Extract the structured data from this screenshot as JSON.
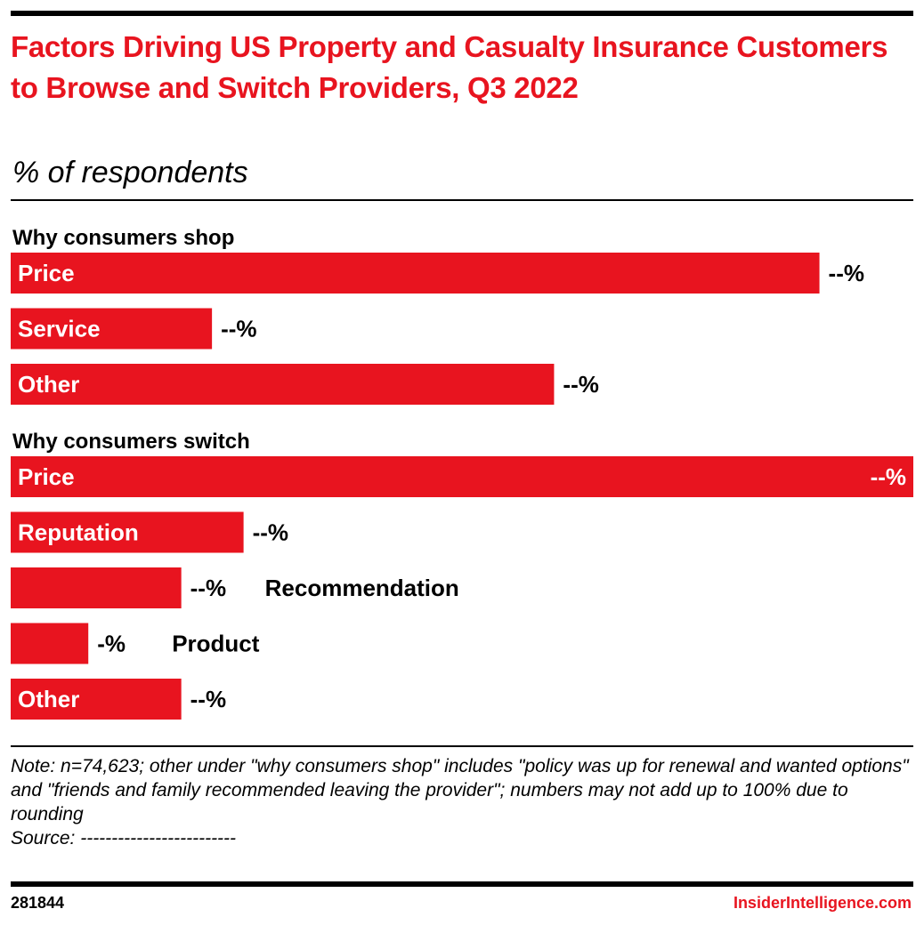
{
  "header": {
    "title": "Factors Driving US Property and Casualty Insurance Customers to Browse and Switch Providers, Q3 2022",
    "subtitle": "% of respondents"
  },
  "colors": {
    "accent": "#e8141f",
    "text": "#000000",
    "background": "#ffffff"
  },
  "chart_data": {
    "type": "bar",
    "orientation": "horizontal",
    "title": "Factors Driving US Property and Casualty Insurance Customers to Browse and Switch Providers, Q3 2022",
    "subtitle": "% of respondents",
    "unit": "%",
    "xlim": [
      0,
      100
    ],
    "grid": false,
    "legend": "none",
    "groups": [
      {
        "label": "Why consumers shop",
        "bars": [
          {
            "category": "Price",
            "value": 89.6,
            "value_label": "--%",
            "label_position": "inside"
          },
          {
            "category": "Service",
            "value": 22.3,
            "value_label": "--%",
            "label_position": "inside"
          },
          {
            "category": "Other",
            "value": 60.2,
            "value_label": "--%",
            "label_position": "inside"
          }
        ]
      },
      {
        "label": "Why consumers switch",
        "bars": [
          {
            "category": "Price",
            "value": 100,
            "value_label": "--%",
            "label_position": "inside"
          },
          {
            "category": "Reputation",
            "value": 25.8,
            "value_label": "--%",
            "label_position": "inside"
          },
          {
            "category": "Recommendation",
            "value": 18.9,
            "value_label": "--%",
            "label_position": "outside"
          },
          {
            "category": "Product",
            "value": 8.6,
            "value_label": "-%",
            "label_position": "outside"
          },
          {
            "category": "Other",
            "value": 18.9,
            "value_label": "--%",
            "label_position": "inside"
          }
        ]
      }
    ]
  },
  "footer": {
    "note": "Note: n=74,623; other under \"why consumers shop\" includes \"policy was up for renewal and wanted options\" and \"friends and family recommended leaving the provider\"; numbers may not add up to 100% due to rounding",
    "source": "Source: -------------------------",
    "chart_id": "281844",
    "brand": "InsiderIntelligence.com"
  }
}
